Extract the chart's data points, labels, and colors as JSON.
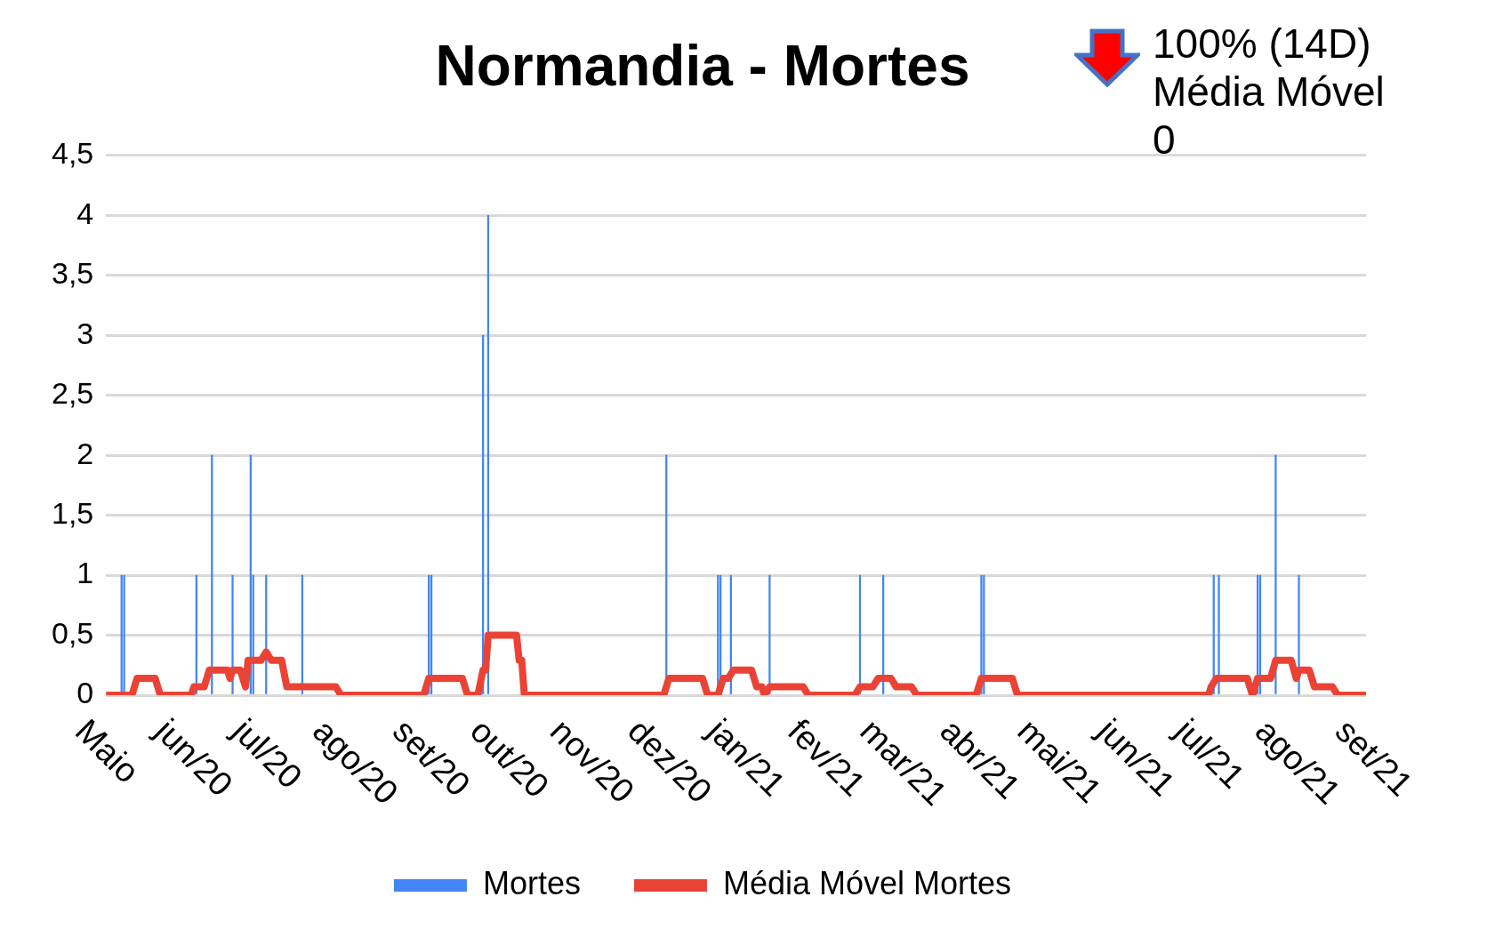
{
  "chart_data": {
    "type": "bar",
    "title": "Normandia - Mortes",
    "annotations": [
      "100% (14D) Média Móvel 0"
    ],
    "xlim": [
      "2020-05-01",
      "2021-09-01"
    ],
    "xticks": [
      {
        "value": "2020-05-01",
        "label": "Maio"
      },
      {
        "value": "2020-06-01",
        "label": "jun/20"
      },
      {
        "value": "2020-07-01",
        "label": "jul/20"
      },
      {
        "value": "2020-08-01",
        "label": "ago/20"
      },
      {
        "value": "2020-09-01",
        "label": "set/20"
      },
      {
        "value": "2020-10-01",
        "label": "out/20"
      },
      {
        "value": "2020-11-01",
        "label": "nov/20"
      },
      {
        "value": "2020-12-01",
        "label": "dez/20"
      },
      {
        "value": "2021-01-01",
        "label": "jan/21"
      },
      {
        "value": "2021-02-01",
        "label": "fev/21"
      },
      {
        "value": "2021-03-01",
        "label": "mar/21"
      },
      {
        "value": "2021-04-01",
        "label": "abr/21"
      },
      {
        "value": "2021-05-01",
        "label": "mai/21"
      },
      {
        "value": "2021-06-01",
        "label": "jun/21"
      },
      {
        "value": "2021-07-01",
        "label": "jul/21"
      },
      {
        "value": "2021-08-01",
        "label": "ago/21"
      },
      {
        "value": "2021-09-01",
        "label": "set/21"
      }
    ],
    "ylim": [
      0,
      4.5
    ],
    "yticks": [
      0,
      {
        "value": 0.5,
        "label": "0,5"
      },
      1,
      {
        "value": 1.5,
        "label": "1,5"
      },
      2,
      {
        "value": 2.5,
        "label": "2,5"
      },
      3,
      {
        "value": 3.5,
        "label": "3,5"
      },
      4,
      {
        "value": 4.5,
        "label": "4,5"
      }
    ],
    "grid": "y",
    "legend": "bottom",
    "series": [
      {
        "name": "Mortes",
        "color": "#4285f4",
        "x": [
          "2020-05-07",
          "2020-05-08",
          "2020-06-05",
          "2020-06-11",
          "2020-06-19",
          "2020-06-26",
          "2020-06-27",
          "2020-07-02",
          "2020-07-16",
          "2020-09-03",
          "2020-09-04",
          "2020-09-24",
          "2020-09-26",
          "2020-12-04",
          "2020-12-24",
          "2020-12-25",
          "2020-12-29",
          "2021-01-13",
          "2021-02-17",
          "2021-02-26",
          "2021-04-05",
          "2021-04-06",
          "2021-07-04",
          "2021-07-06",
          "2021-07-21",
          "2021-07-22",
          "2021-07-28",
          "2021-08-06"
        ],
        "values": [
          1,
          1,
          1,
          2,
          1,
          2,
          1,
          1,
          1,
          1,
          1,
          3,
          4,
          2,
          1,
          1,
          1,
          1,
          1,
          1,
          1,
          1,
          1,
          1,
          1,
          1,
          2,
          1
        ]
      },
      {
        "name": "Média Móvel Mortes",
        "type": "line",
        "color": "#ea4335",
        "x": [
          "2020-05-01",
          "2020-05-11",
          "2020-05-13",
          "2020-05-20",
          "2020-05-22",
          "2020-06-03",
          "2020-06-04",
          "2020-06-08",
          "2020-06-10",
          "2020-06-17",
          "2020-06-18",
          "2020-06-19",
          "2020-06-22",
          "2020-06-24",
          "2020-06-25",
          "2020-06-30",
          "2020-07-02",
          "2020-07-04",
          "2020-07-08",
          "2020-07-10",
          "2020-07-29",
          "2020-07-31",
          "2020-09-01",
          "2020-09-03",
          "2020-09-16",
          "2020-09-18",
          "2020-09-22",
          "2020-09-24",
          "2020-09-25",
          "2020-09-26",
          "2020-10-07",
          "2020-10-08",
          "2020-10-09",
          "2020-10-10",
          "2020-12-03",
          "2020-12-05",
          "2020-12-18",
          "2020-12-20",
          "2020-12-24",
          "2020-12-26",
          "2020-12-28",
          "2020-12-30",
          "2021-01-06",
          "2021-01-08",
          "2021-01-10",
          "2021-01-11",
          "2021-01-13",
          "2021-01-26",
          "2021-01-28",
          "2021-02-15",
          "2021-02-17",
          "2021-02-22",
          "2021-02-24",
          "2021-03-01",
          "2021-03-03",
          "2021-03-09",
          "2021-03-11",
          "2021-04-03",
          "2021-04-05",
          "2021-04-17",
          "2021-04-19",
          "2021-07-02",
          "2021-07-03",
          "2021-07-05",
          "2021-07-17",
          "2021-07-18",
          "2021-07-19",
          "2021-07-21",
          "2021-07-26",
          "2021-07-28",
          "2021-08-03",
          "2021-08-05",
          "2021-08-06",
          "2021-08-10",
          "2021-08-12",
          "2021-08-19",
          "2021-08-21",
          "2021-09-01"
        ],
        "values": [
          0,
          0,
          0.14,
          0.14,
          0,
          0,
          0.07,
          0.07,
          0.21,
          0.21,
          0.14,
          0.21,
          0.21,
          0.07,
          0.29,
          0.29,
          0.36,
          0.29,
          0.29,
          0.07,
          0.07,
          0,
          0,
          0.14,
          0.14,
          0,
          0,
          0.21,
          0.21,
          0.5,
          0.5,
          0.29,
          0.29,
          0,
          0,
          0.14,
          0.14,
          0,
          0,
          0.14,
          0.14,
          0.21,
          0.21,
          0.07,
          0.07,
          0,
          0.07,
          0.07,
          0,
          0,
          0.07,
          0.07,
          0.14,
          0.14,
          0.07,
          0.07,
          0,
          0,
          0.14,
          0.14,
          0,
          0,
          0.07,
          0.14,
          0.14,
          0.07,
          0,
          0.14,
          0.14,
          0.29,
          0.29,
          0.14,
          0.21,
          0.21,
          0.07,
          0.07,
          0,
          0
        ]
      }
    ]
  }
}
